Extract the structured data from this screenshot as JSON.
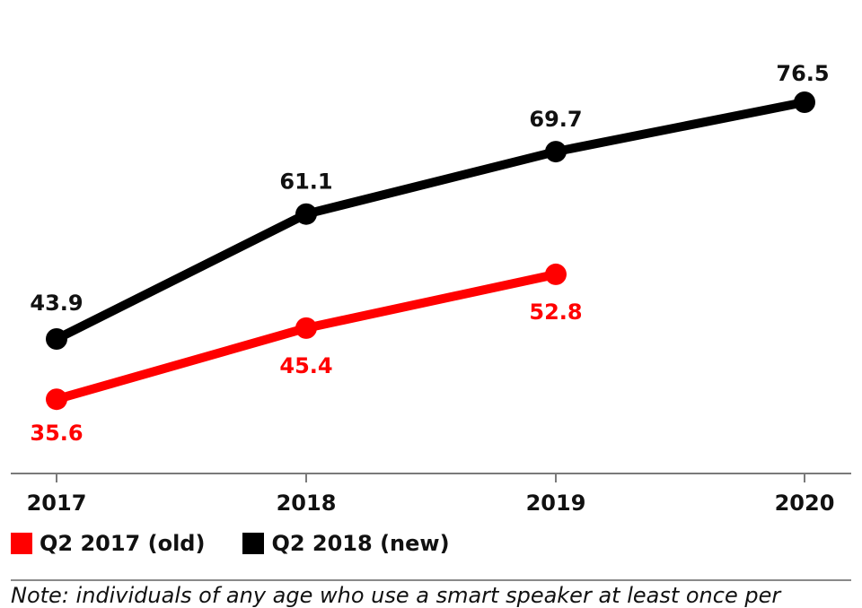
{
  "chart_data": {
    "type": "line",
    "categories": [
      "2017",
      "2018",
      "2019",
      "2020"
    ],
    "series": [
      {
        "name": "Q2 2017 (old)",
        "color": "#ff0000",
        "values": [
          35.6,
          45.4,
          52.8,
          null
        ],
        "labels": [
          "35.6",
          "45.4",
          "52.8",
          ""
        ]
      },
      {
        "name": "Q2 2018 (new)",
        "color": "#000000",
        "values": [
          43.9,
          61.1,
          69.7,
          76.5
        ],
        "labels": [
          "43.9",
          "61.1",
          "69.7",
          "76.5"
        ]
      }
    ],
    "ylim": [
      0,
      85
    ],
    "grid": false,
    "legend_position": "bottom-left",
    "note": "Note: individuals of any age who use a smart speaker at least once per"
  }
}
